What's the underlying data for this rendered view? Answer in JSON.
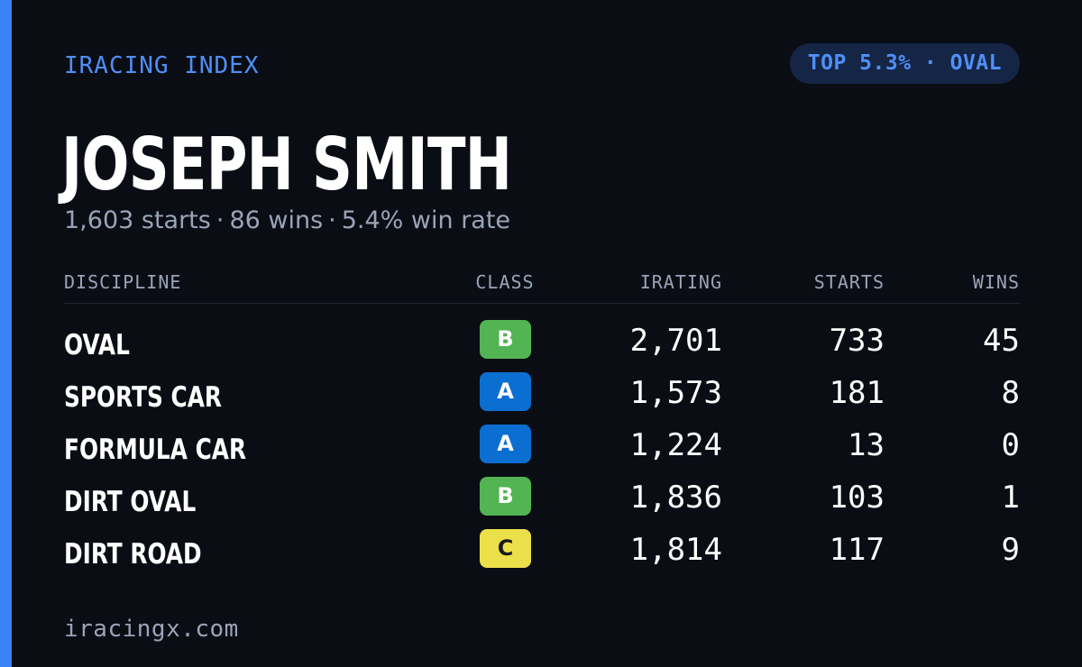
{
  "header": {
    "brand": "IRACING INDEX",
    "badge": "TOP 5.3% · OVAL"
  },
  "driver": {
    "name": "JOSEPH SMITH",
    "starts_text": "1,603 starts",
    "wins_text": "86 wins",
    "win_rate_text": "5.4% win rate",
    "separator": "·"
  },
  "table": {
    "columns": {
      "discipline": "DISCIPLINE",
      "class": "CLASS",
      "irating": "IRATING",
      "starts": "STARTS",
      "wins": "WINS"
    },
    "rows": [
      {
        "discipline": "OVAL",
        "class": "B",
        "irating": "2,701",
        "starts": "733",
        "wins": "45"
      },
      {
        "discipline": "SPORTS CAR",
        "class": "A",
        "irating": "1,573",
        "starts": "181",
        "wins": "8"
      },
      {
        "discipline": "FORMULA CAR",
        "class": "A",
        "irating": "1,224",
        "starts": "13",
        "wins": "0"
      },
      {
        "discipline": "DIRT OVAL",
        "class": "B",
        "irating": "1,836",
        "starts": "103",
        "wins": "1"
      },
      {
        "discipline": "DIRT ROAD",
        "class": "C",
        "irating": "1,814",
        "starts": "117",
        "wins": "9"
      }
    ]
  },
  "class_colors": {
    "A": {
      "bg": "#0b6fd1",
      "fg": "#ffffff"
    },
    "B": {
      "bg": "#52b452",
      "fg": "#ffffff"
    },
    "C": {
      "bg": "#ece04a",
      "fg": "#1a1a1a"
    }
  },
  "footer": {
    "site": "iracingx.com"
  },
  "colors": {
    "accent": "#3b82f6",
    "background": "#0a0d14",
    "badge_bg": "#152545",
    "muted": "#9aa4b8"
  }
}
